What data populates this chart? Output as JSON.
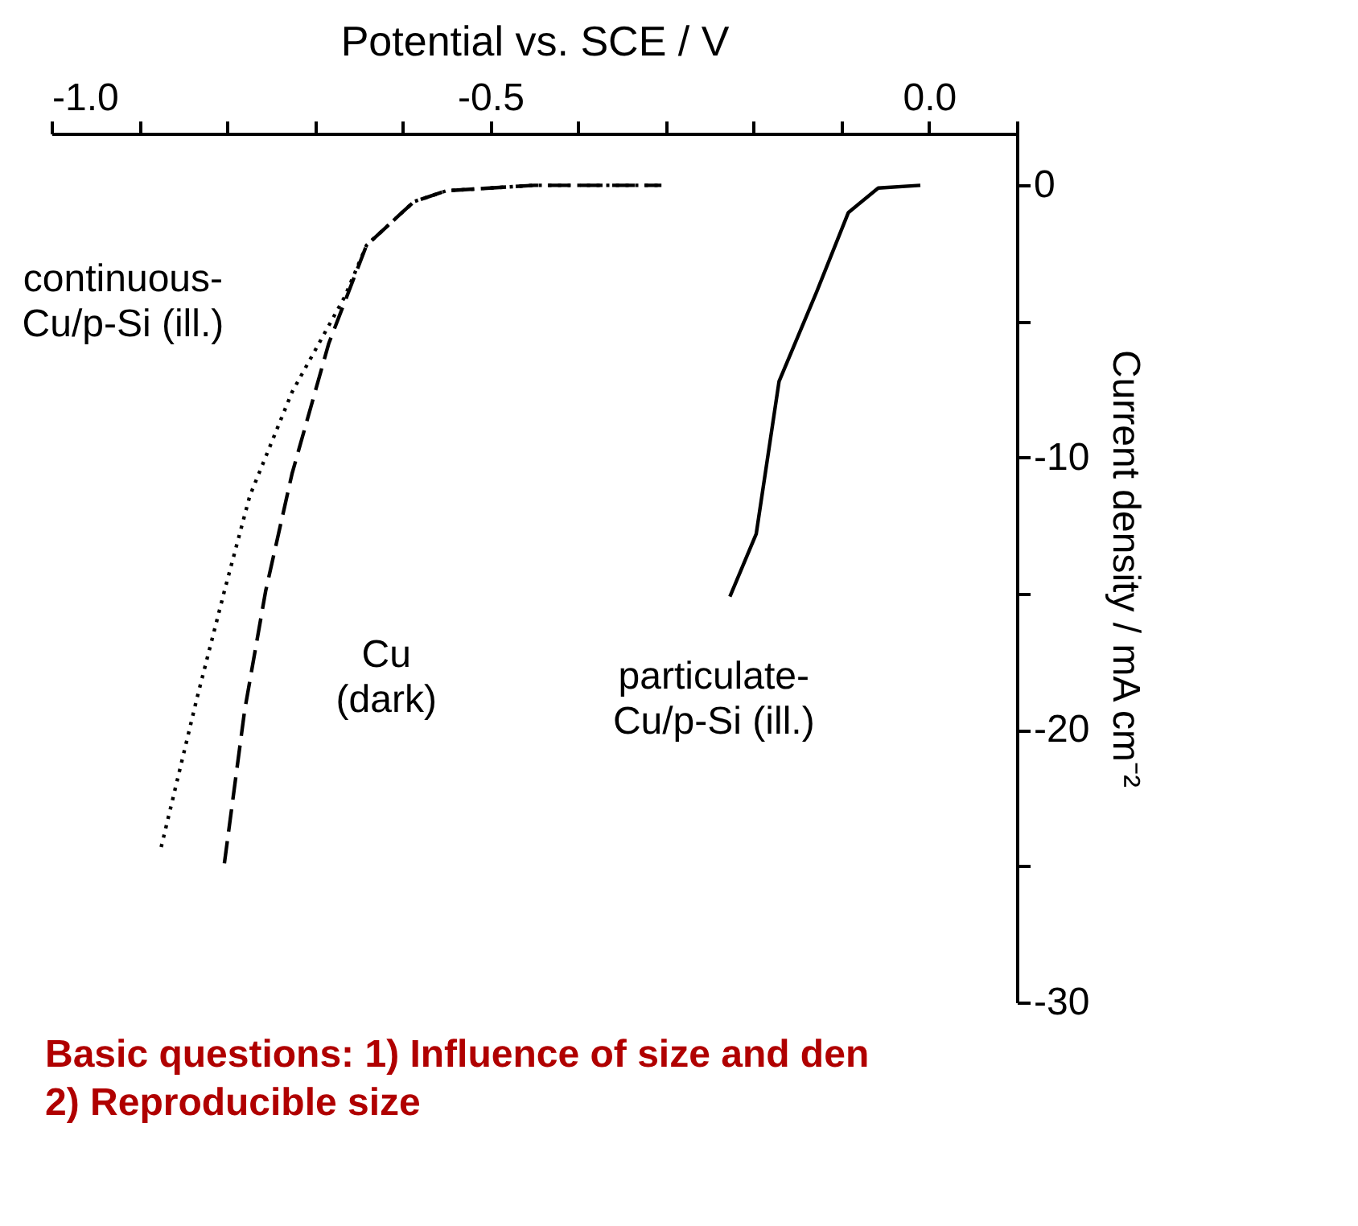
{
  "chart_data": {
    "type": "line",
    "xlabel": "Potential vs. SCE / V",
    "ylabel": "Current density / mA cm⁻²",
    "xlim": [
      -1.0,
      0.1
    ],
    "xticks": [
      {
        "value": -1.0,
        "label": "-1.0"
      },
      {
        "value": -0.9,
        "label": null
      },
      {
        "value": -0.8,
        "label": null
      },
      {
        "value": -0.7,
        "label": null
      },
      {
        "value": -0.6,
        "label": null
      },
      -0.5,
      {
        "value": -0.4,
        "label": null
      },
      {
        "value": -0.3,
        "label": null
      },
      {
        "value": -0.2,
        "label": null
      },
      {
        "value": -0.1,
        "label": null
      },
      {
        "value": 0.0,
        "label": "0.0"
      },
      {
        "value": 0.1,
        "label": null
      }
    ],
    "ylim": [
      -30,
      1.9
    ],
    "yticks": [
      0,
      {
        "value": -5,
        "label": null
      },
      -10,
      {
        "value": -15,
        "label": null
      },
      -20,
      {
        "value": -25,
        "label": null
      },
      -30
    ],
    "grid": false,
    "legend": false,
    "marker": "none",
    "series": [
      {
        "name": "continuous-Cu/p-Si (ill.)",
        "color": "#000000",
        "line_style": "dotted",
        "x": [
          -0.305,
          -0.45,
          -0.55,
          -0.587,
          -0.641,
          -0.666,
          -0.726,
          -0.774,
          -0.803,
          -0.834,
          -0.875
        ],
        "values": [
          0,
          0,
          -0.2,
          -0.6,
          -2.2,
          -4.1,
          -7.6,
          -11.4,
          -14.9,
          -18.8,
          -24.3
        ]
      },
      {
        "name": "Cu (dark)",
        "color": "#000000",
        "line_style": "dashed",
        "x": [
          -0.305,
          -0.45,
          -0.55,
          -0.587,
          -0.641,
          -0.684,
          -0.726,
          -0.756,
          -0.78,
          -0.803
        ],
        "values": [
          0,
          0,
          -0.2,
          -0.6,
          -2.2,
          -5.8,
          -10.6,
          -14.9,
          -19.3,
          -24.9
        ]
      },
      {
        "name": "particulate-Cu/p-Si (ill.)",
        "color": "#000000",
        "line_style": "solid",
        "x": [
          -0.01,
          -0.058,
          -0.092,
          -0.128,
          -0.171,
          -0.197,
          -0.227
        ],
        "values": [
          0,
          -0.1,
          -1,
          -3.9,
          -7.2,
          -12.8,
          -15.1
        ]
      }
    ],
    "annotations": [
      "Basic questions:  1) Influence of size and den",
      "2) Reproducible size"
    ]
  }
}
